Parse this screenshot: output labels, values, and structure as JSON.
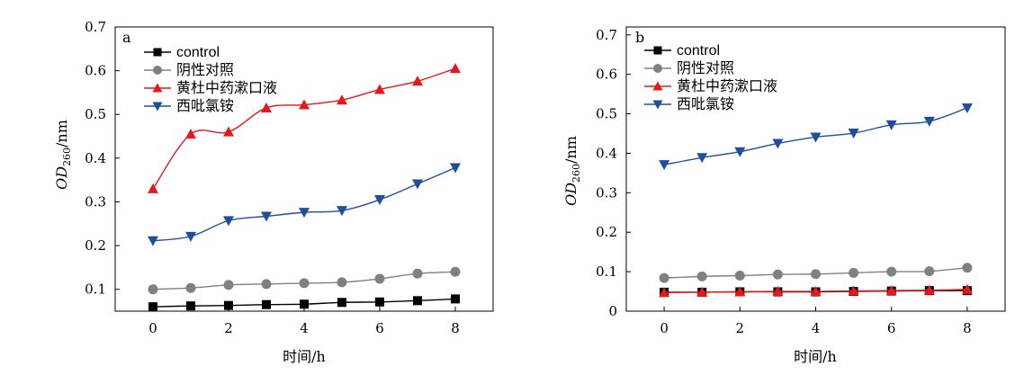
{
  "chart_data": [
    {
      "type": "line",
      "panel_label": "a",
      "xlabel": "时间/h",
      "ylabel": {
        "italic": "OD",
        "subscript": "260",
        "suffix": "/nm"
      },
      "xlim": [
        -1,
        9
      ],
      "ylim": [
        0.05,
        0.7
      ],
      "xticks": [
        0,
        2,
        4,
        6,
        8
      ],
      "yticks": [
        0.1,
        0.2,
        0.3,
        0.4,
        0.5,
        0.6,
        0.7
      ],
      "ytick_labels": [
        "0.1",
        "0.2",
        "0.3",
        "0.4",
        "0.5",
        "0.6",
        "0.7"
      ],
      "grid": false,
      "legend_position": "top-left",
      "x": [
        0,
        1,
        2,
        3,
        4,
        5,
        6,
        7,
        8
      ],
      "series": [
        {
          "name": "control",
          "color": "#000000",
          "marker": "square",
          "values": [
            0.06,
            0.062,
            0.063,
            0.065,
            0.066,
            0.07,
            0.071,
            0.074,
            0.078
          ]
        },
        {
          "name": "阴性对照",
          "color": "#808080",
          "marker": "circle",
          "values": [
            0.1,
            0.103,
            0.11,
            0.112,
            0.114,
            0.116,
            0.124,
            0.136,
            0.14
          ]
        },
        {
          "name": "黄杜中药漱口液",
          "color": "#e8171b",
          "marker": "triangle-up",
          "values": [
            0.33,
            0.455,
            0.46,
            0.515,
            0.522,
            0.533,
            0.557,
            0.576,
            0.605
          ]
        },
        {
          "name": "西吡氯铵",
          "color": "#1f4e9c",
          "marker": "triangle-down",
          "values": [
            0.211,
            0.221,
            0.257,
            0.267,
            0.276,
            0.28,
            0.305,
            0.341,
            0.378
          ]
        }
      ]
    },
    {
      "type": "line",
      "panel_label": "b",
      "xlabel": "时间/h",
      "ylabel": {
        "italic": "OD",
        "subscript": "260",
        "suffix": "/nm"
      },
      "xlim": [
        -1,
        9
      ],
      "ylim": [
        0,
        0.72
      ],
      "xticks": [
        0,
        2,
        4,
        6,
        8
      ],
      "yticks": [
        0,
        0.1,
        0.2,
        0.3,
        0.4,
        0.5,
        0.6,
        0.7
      ],
      "ytick_labels": [
        "0",
        "0.1",
        "0.2",
        "0.3",
        "0.4",
        "0.5",
        "0.6",
        "0.7"
      ],
      "grid": false,
      "legend_position": "top-left",
      "x": [
        0,
        1,
        2,
        3,
        4,
        5,
        6,
        7,
        8
      ],
      "series": [
        {
          "name": "control",
          "color": "#000000",
          "marker": "square",
          "values": [
            0.048,
            0.048,
            0.049,
            0.049,
            0.049,
            0.05,
            0.051,
            0.052,
            0.052
          ]
        },
        {
          "name": "阴性对照",
          "color": "#808080",
          "marker": "circle",
          "values": [
            0.084,
            0.088,
            0.09,
            0.093,
            0.094,
            0.097,
            0.1,
            0.101,
            0.11
          ]
        },
        {
          "name": "黄杜中药漱口液",
          "color": "#e8171b",
          "marker": "triangle-up",
          "values": [
            0.047,
            0.048,
            0.049,
            0.05,
            0.05,
            0.051,
            0.052,
            0.053,
            0.055
          ]
        },
        {
          "name": "西吡氯铵",
          "color": "#1f4e9c",
          "marker": "triangle-down",
          "values": [
            0.371,
            0.389,
            0.404,
            0.425,
            0.441,
            0.451,
            0.472,
            0.481,
            0.515
          ]
        }
      ]
    }
  ]
}
